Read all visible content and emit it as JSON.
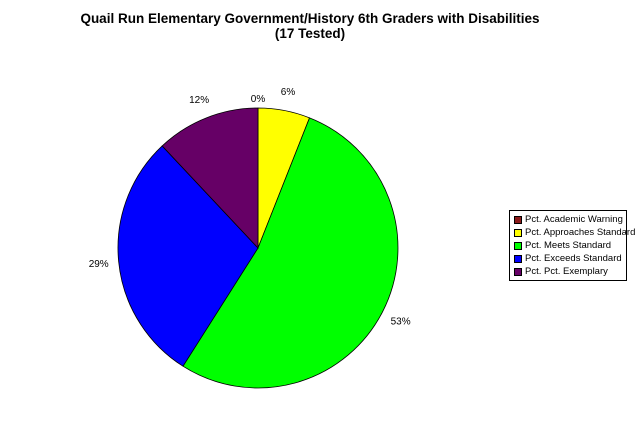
{
  "chart_data": {
    "type": "pie",
    "title": "Quail Run Elementary Government/History 6th Graders with Disabilities",
    "subtitle": "(17 Tested)",
    "legend_position": "right",
    "slices": [
      {
        "label": "Pct. Academic Warning",
        "value": 0,
        "value_label": "0%",
        "color": "#8b1a1a"
      },
      {
        "label": "Pct. Approaches Standard",
        "value": 6,
        "value_label": "6%",
        "color": "#ffff00"
      },
      {
        "label": "Pct. Meets Standard",
        "value": 53,
        "value_label": "53%",
        "color": "#00ff00"
      },
      {
        "label": "Pct. Exceeds Standard",
        "value": 29,
        "value_label": "29%",
        "color": "#0000ff"
      },
      {
        "label": "Pct. Pct. Exemplary",
        "value": 12,
        "value_label": "12%",
        "color": "#660066"
      }
    ]
  }
}
